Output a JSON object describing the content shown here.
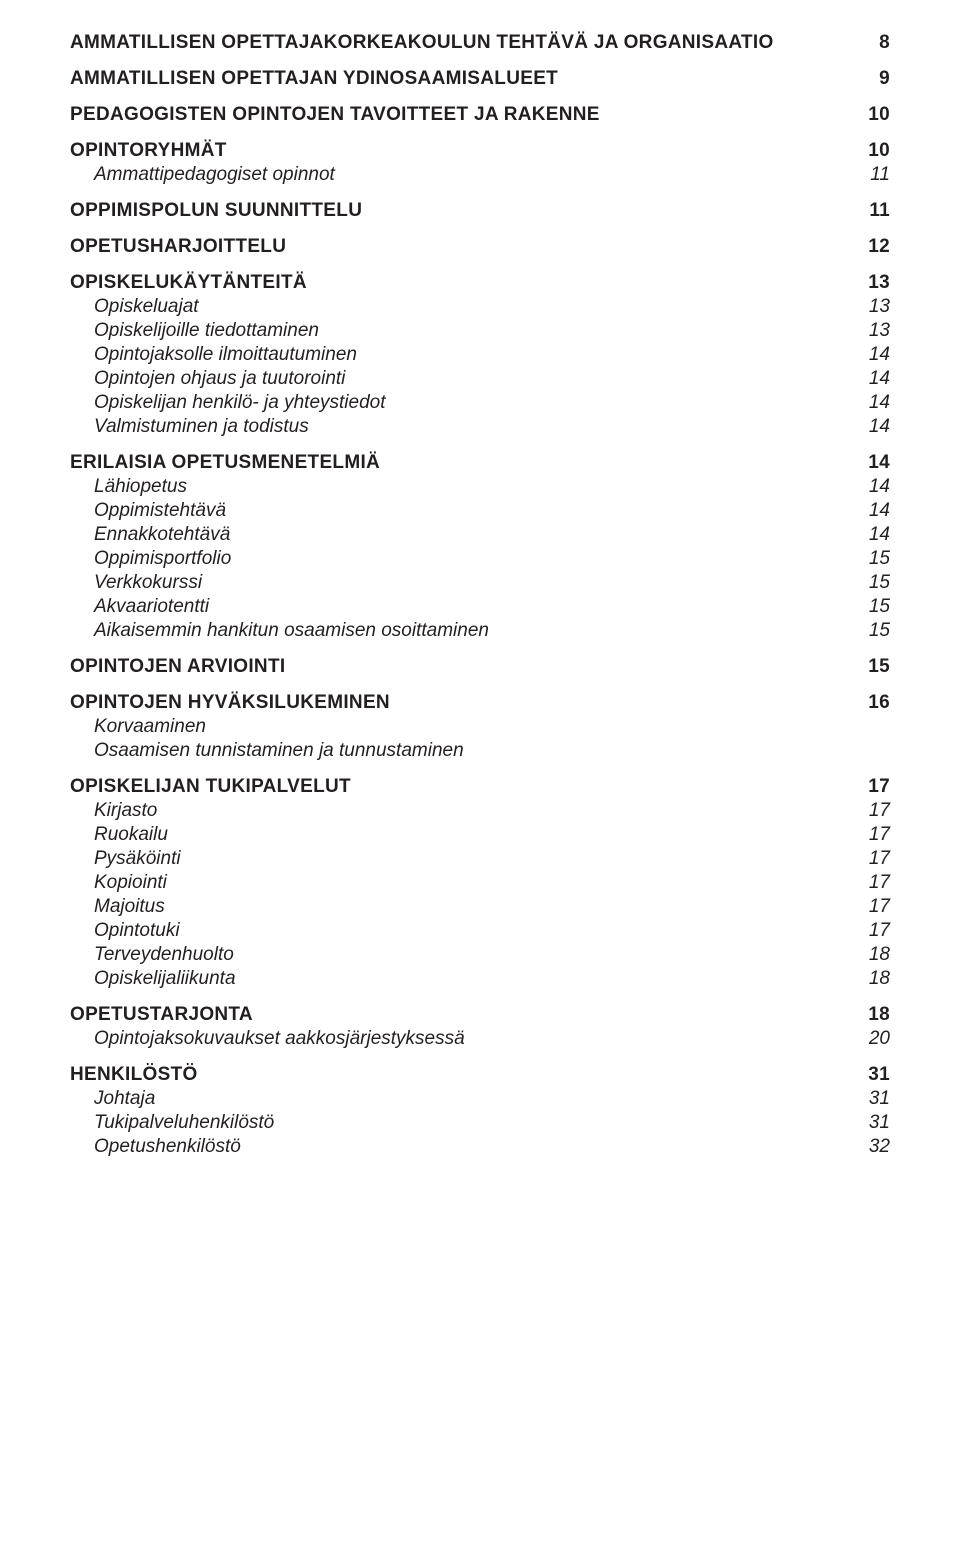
{
  "colors": {
    "text": "#231f20",
    "background": "#ffffff"
  },
  "typography": {
    "base_fontsize": 19,
    "bold_weight": 700,
    "font_family": "Arial"
  },
  "toc": [
    {
      "type": "h1",
      "label": "AMMATILLISEN OPETTAJAKORKEAKOULUN TEHTÄVÄ JA ORGANISAATIO",
      "page": "8",
      "first": true
    },
    {
      "type": "h1",
      "label": "AMMATILLISEN OPETTAJAN YDINOSAAMISALUEET",
      "page": "9"
    },
    {
      "type": "h1",
      "label": "PEDAGOGISTEN OPINTOJEN TAVOITTEET JA RAKENNE",
      "page": "10"
    },
    {
      "type": "h1",
      "label": "OPINTORYHMÄT",
      "page": "10"
    },
    {
      "type": "sub",
      "label": "Ammattipedagogiset opinnot",
      "page": "11"
    },
    {
      "type": "h1",
      "label": "OPPIMISPOLUN SUUNNITTELU",
      "page": "11"
    },
    {
      "type": "h1",
      "label": "OPETUSHARJOITTELU",
      "page": "12"
    },
    {
      "type": "h1",
      "label": "OPISKELUKÄYTÄNTEITÄ",
      "page": "13"
    },
    {
      "type": "sub",
      "label": "Opiskeluajat",
      "page": "13"
    },
    {
      "type": "sub",
      "label": "Opiskelijoille tiedottaminen",
      "page": "13"
    },
    {
      "type": "sub",
      "label": "Opintojaksolle ilmoittautuminen",
      "page": "14"
    },
    {
      "type": "sub",
      "label": "Opintojen ohjaus ja tuutorointi",
      "page": "14"
    },
    {
      "type": "sub",
      "label": "Opiskelijan henkilö- ja yhteystiedot",
      "page": "14"
    },
    {
      "type": "sub",
      "label": "Valmistuminen ja todistus",
      "page": "14"
    },
    {
      "type": "h1",
      "label": "ERILAISIA OPETUSMENETELMIÄ",
      "page": "14"
    },
    {
      "type": "sub",
      "label": "Lähiopetus",
      "page": "14"
    },
    {
      "type": "sub",
      "label": "Oppimistehtävä",
      "page": "14"
    },
    {
      "type": "sub",
      "label": "Ennakkotehtävä",
      "page": "14"
    },
    {
      "type": "sub",
      "label": "Oppimisportfolio",
      "page": "15"
    },
    {
      "type": "sub",
      "label": "Verkkokurssi",
      "page": "15"
    },
    {
      "type": "sub",
      "label": "Akvaariotentti",
      "page": "15"
    },
    {
      "type": "sub",
      "label": "Aikaisemmin hankitun osaamisen osoittaminen",
      "page": "15"
    },
    {
      "type": "h1",
      "label": "OPINTOJEN ARVIOINTI",
      "page": "15"
    },
    {
      "type": "h1",
      "label": "OPINTOJEN HYVÄKSILUKEMINEN",
      "page": "16"
    },
    {
      "type": "sub",
      "label": "Korvaaminen",
      "page": ""
    },
    {
      "type": "sub",
      "label": "Osaamisen tunnistaminen ja tunnustaminen",
      "page": ""
    },
    {
      "type": "h1",
      "label": "OPISKELIJAN TUKIPALVELUT",
      "page": "17"
    },
    {
      "type": "sub",
      "label": "Kirjasto",
      "page": "17"
    },
    {
      "type": "sub",
      "label": "Ruokailu",
      "page": "17"
    },
    {
      "type": "sub",
      "label": "Pysäköinti",
      "page": "17"
    },
    {
      "type": "sub",
      "label": "Kopiointi",
      "page": "17"
    },
    {
      "type": "sub",
      "label": "Majoitus",
      "page": "17"
    },
    {
      "type": "sub",
      "label": "Opintotuki",
      "page": "17"
    },
    {
      "type": "sub",
      "label": "Terveydenhuolto",
      "page": "18"
    },
    {
      "type": "sub",
      "label": "Opiskelijaliikunta",
      "page": "18"
    },
    {
      "type": "h1",
      "label": "OPETUSTARJONTA",
      "page": "18"
    },
    {
      "type": "sub",
      "label": "Opintojaksokuvaukset aakkosjärjestyksessä",
      "page": "20"
    },
    {
      "type": "h1",
      "label": "HENKILÖSTÖ",
      "page": "31"
    },
    {
      "type": "sub",
      "label": "Johtaja",
      "page": "31"
    },
    {
      "type": "sub",
      "label": "Tukipalveluhenkilöstö",
      "page": "31"
    },
    {
      "type": "sub",
      "label": "Opetushenkilöstö",
      "page": "32"
    }
  ]
}
